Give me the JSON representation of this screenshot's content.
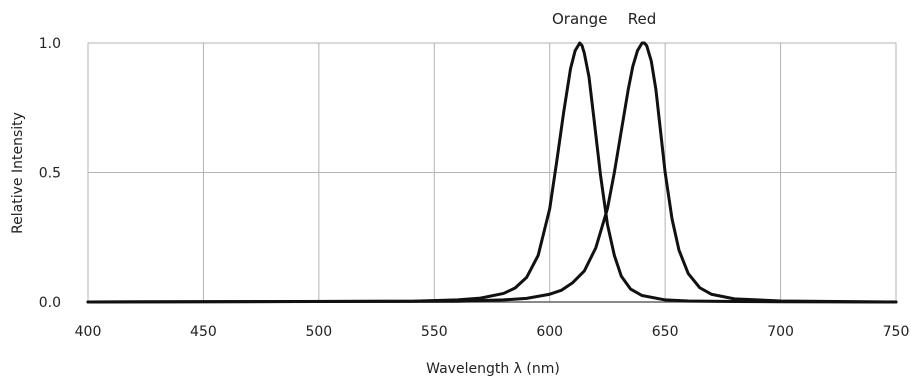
{
  "chart_data": {
    "type": "line",
    "xlabel": "Wavelength  λ  (nm)",
    "ylabel": "Relative Intensity",
    "xlim": [
      400,
      750
    ],
    "ylim": [
      0,
      1.0
    ],
    "x_ticks": [
      400,
      450,
      500,
      550,
      600,
      650,
      700,
      750
    ],
    "y_ticks": [
      0.0,
      0.5,
      1.0
    ],
    "x_tick_labels": [
      "400",
      "450",
      "500",
      "550",
      "600",
      "650",
      "700",
      "750"
    ],
    "y_tick_labels": [
      "0.0",
      "0.5",
      "1.0"
    ],
    "grid": true,
    "line_color": "#111111",
    "grid_color": "#b4b4b4",
    "series": [
      {
        "name": "Orange",
        "x": [
          540,
          560,
          570,
          580,
          585,
          590,
          595,
          600,
          603,
          606,
          609,
          611,
          613,
          614,
          615,
          617,
          619,
          622,
          625,
          628,
          631,
          635,
          640,
          650,
          660,
          680,
          700,
          750
        ],
        "y": [
          0.003,
          0.008,
          0.015,
          0.033,
          0.054,
          0.095,
          0.18,
          0.36,
          0.54,
          0.73,
          0.9,
          0.97,
          1.0,
          0.99,
          0.96,
          0.87,
          0.72,
          0.49,
          0.3,
          0.18,
          0.1,
          0.05,
          0.025,
          0.008,
          0.004,
          0.002,
          0.001,
          0.0
        ]
      },
      {
        "name": "Red",
        "x": [
          560,
          580,
          590,
          600,
          605,
          610,
          615,
          620,
          625,
          628,
          631,
          634,
          636,
          638,
          640,
          641,
          642,
          644,
          646,
          648,
          650,
          653,
          656,
          660,
          665,
          670,
          680,
          700,
          750
        ],
        "y": [
          0.003,
          0.008,
          0.014,
          0.03,
          0.045,
          0.075,
          0.12,
          0.21,
          0.36,
          0.5,
          0.66,
          0.82,
          0.91,
          0.97,
          1.0,
          1.0,
          0.99,
          0.93,
          0.82,
          0.66,
          0.5,
          0.32,
          0.2,
          0.11,
          0.055,
          0.03,
          0.012,
          0.004,
          0.0
        ]
      }
    ]
  }
}
